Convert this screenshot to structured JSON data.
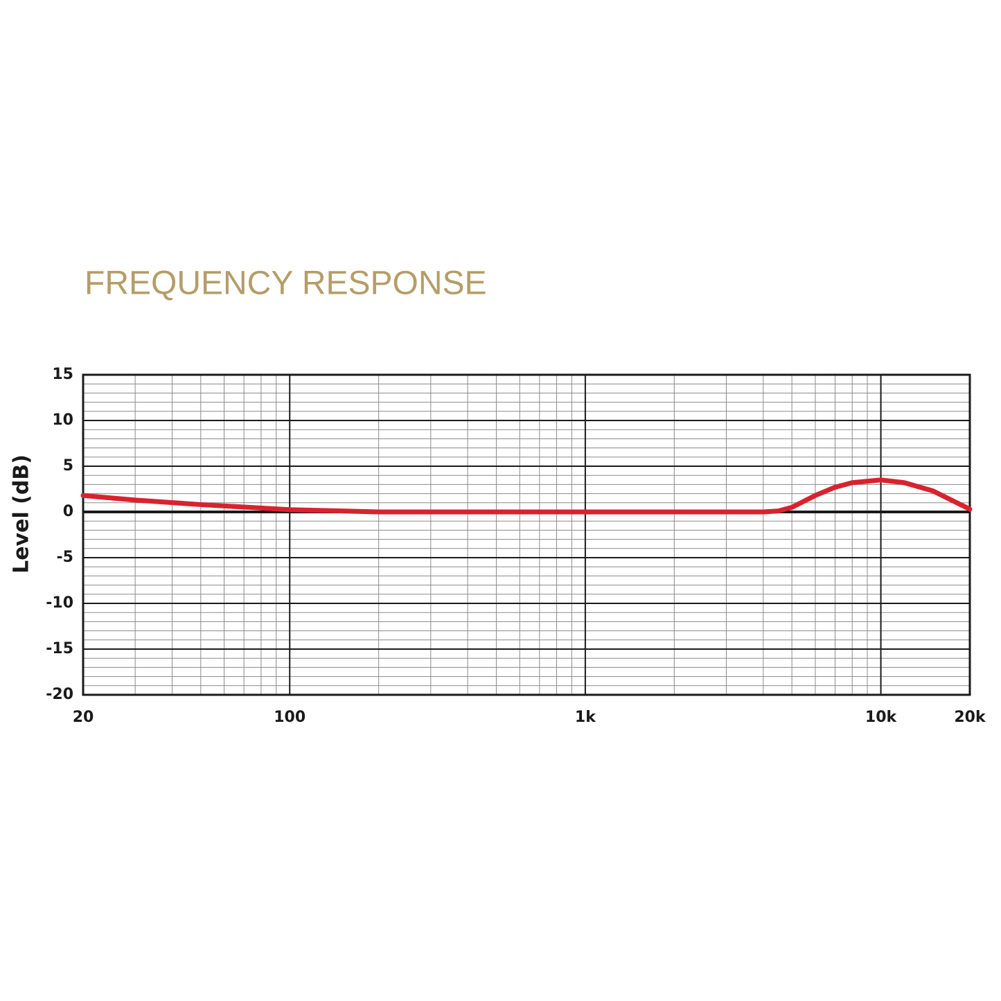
{
  "chart_data": {
    "type": "line",
    "title": "FREQUENCY RESPONSE",
    "y_label": "Level (dB)",
    "x": [
      20,
      30,
      50,
      100,
      200,
      500,
      1000,
      2000,
      4000,
      4500,
      5000,
      6000,
      7000,
      8000,
      10000,
      12000,
      15000,
      20000
    ],
    "series": [
      {
        "name": "Level",
        "color": "#d8232f",
        "values": [
          1.8,
          1.3,
          0.8,
          0.25,
          0,
          0,
          0,
          0,
          0,
          0.1,
          0.5,
          1.8,
          2.7,
          3.2,
          3.5,
          3.2,
          2.3,
          0.3
        ]
      }
    ],
    "xlim": [
      20,
      20000
    ],
    "x_log": true,
    "xticks": [
      20,
      100,
      {
        "value": 1000,
        "label": "1k"
      },
      {
        "value": 10000,
        "label": "10k"
      },
      {
        "value": 20000,
        "label": "20k"
      }
    ],
    "ylim": [
      -20,
      15
    ],
    "yticks": [
      -20,
      -15,
      -10,
      -5,
      0,
      5,
      10,
      15
    ],
    "grid": true,
    "minor_grid": true
  }
}
